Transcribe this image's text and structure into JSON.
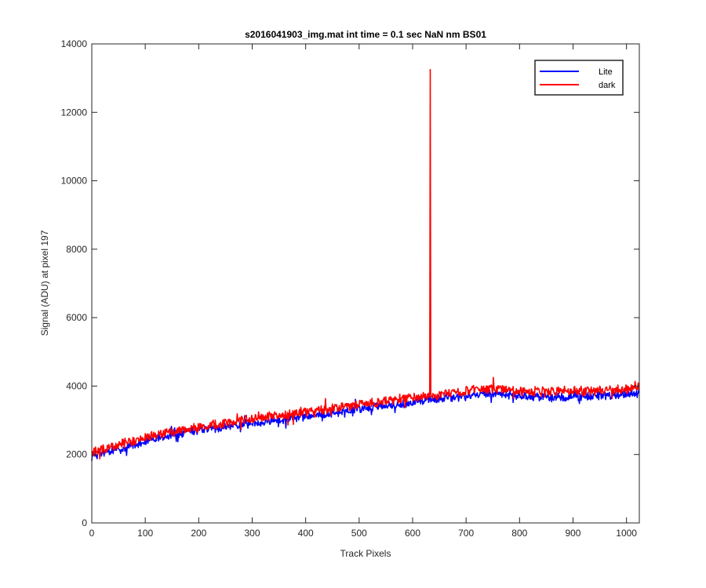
{
  "chart_data": {
    "type": "line",
    "title": "s2016041903_img.mat int time = 0.1 sec  NaN nm BS01",
    "xlabel": "Track Pixels",
    "ylabel": "Signal (ADU) at pixel 197",
    "xlim": [
      0,
      1024
    ],
    "ylim": [
      0,
      14000
    ],
    "xticks": [
      0,
      100,
      200,
      300,
      400,
      500,
      600,
      700,
      800,
      900,
      1000
    ],
    "yticks": [
      0,
      2000,
      4000,
      6000,
      8000,
      10000,
      12000,
      14000
    ],
    "grid": false,
    "legend_position": "top-right",
    "series": [
      {
        "name": "Lite",
        "color": "#0000ff",
        "x": [
          0,
          50,
          100,
          150,
          200,
          250,
          300,
          350,
          400,
          450,
          500,
          550,
          600,
          650,
          700,
          750,
          800,
          850,
          900,
          950,
          1000,
          1023
        ],
        "y": [
          1950,
          2150,
          2380,
          2560,
          2690,
          2800,
          2920,
          3020,
          3120,
          3220,
          3330,
          3430,
          3530,
          3620,
          3700,
          3780,
          3700,
          3680,
          3700,
          3720,
          3760,
          3800
        ],
        "noise": 110
      },
      {
        "name": "dark",
        "color": "#ff0000",
        "x": [
          0,
          50,
          100,
          150,
          200,
          250,
          300,
          350,
          400,
          450,
          500,
          550,
          600,
          650,
          700,
          750,
          800,
          850,
          900,
          950,
          1000,
          1023
        ],
        "y": [
          2050,
          2270,
          2500,
          2680,
          2800,
          2920,
          3040,
          3140,
          3250,
          3350,
          3460,
          3560,
          3660,
          3760,
          3850,
          3930,
          3850,
          3830,
          3850,
          3870,
          3910,
          3960
        ],
        "noise": 120,
        "spike": {
          "x": 633,
          "y": 13250
        }
      }
    ]
  }
}
